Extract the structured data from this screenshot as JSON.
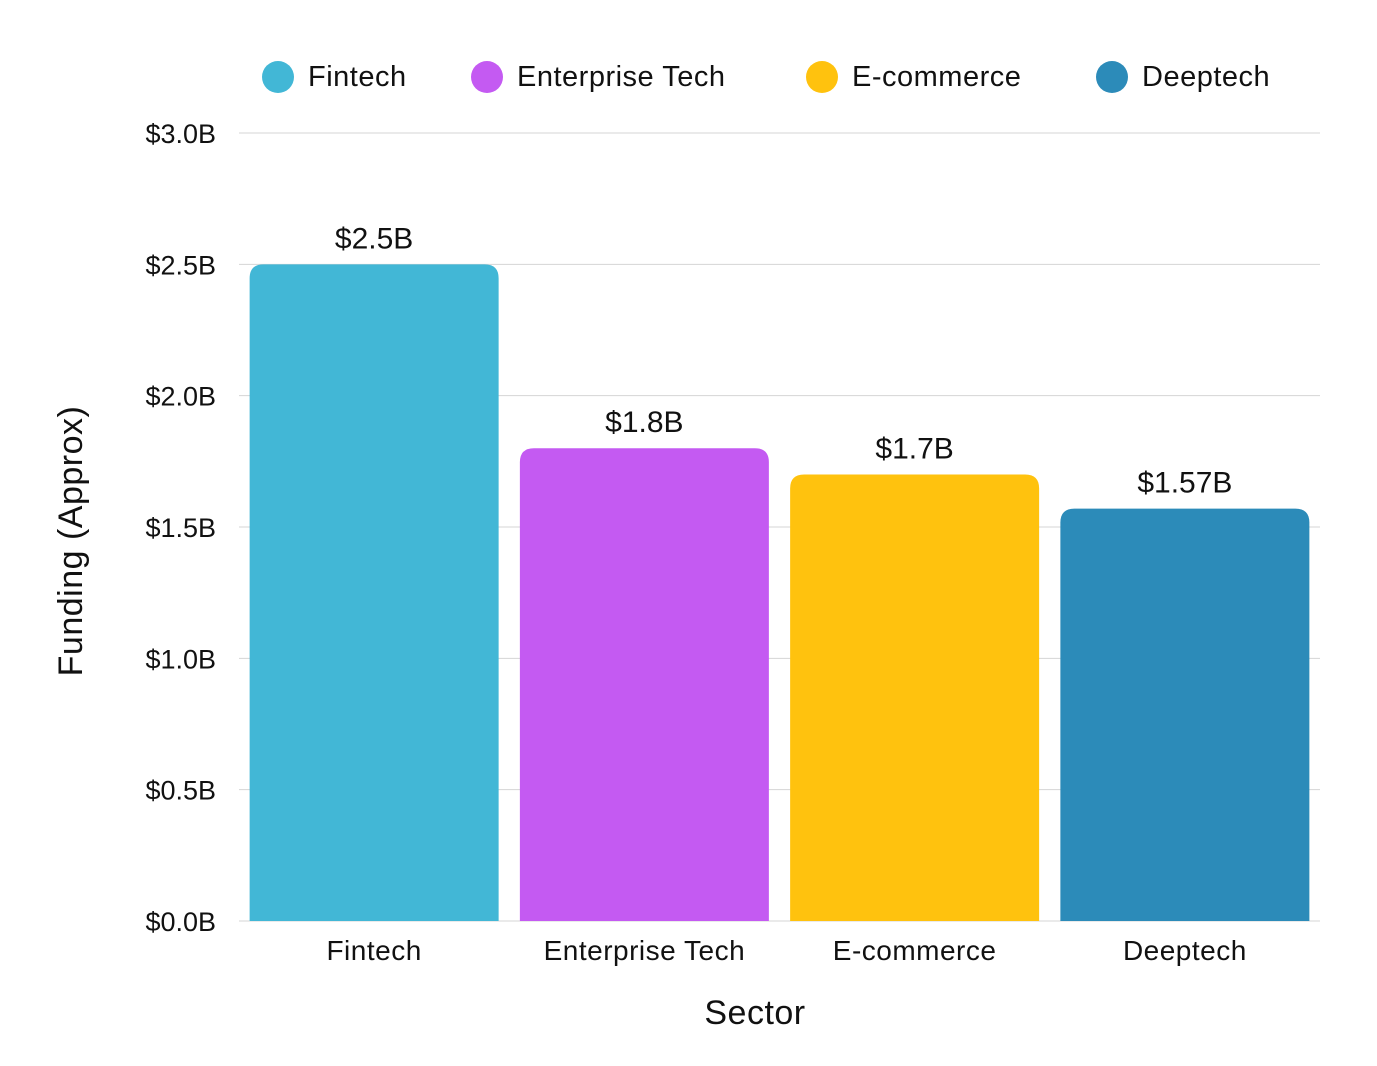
{
  "chart_data": {
    "type": "bar",
    "categories": [
      "Fintech",
      "Enterprise Tech",
      "E-commerce",
      "Deeptech"
    ],
    "values": [
      2.5,
      1.8,
      1.7,
      1.57
    ],
    "data_labels": [
      "$2.5B",
      "$1.8B",
      "$1.7B",
      "$1.57B"
    ],
    "colors": [
      "#42b7d6",
      "#c45af2",
      "#ffc20e",
      "#2c8bb9"
    ],
    "legend": {
      "entries": [
        "Fintech",
        "Enterprise Tech",
        "E-commerce",
        "Deeptech"
      ],
      "placement": "top"
    },
    "title": "",
    "xlabel": "Sector",
    "ylabel": "Funding (Approx)",
    "ylim": [
      0,
      3.0
    ],
    "yticks": [
      0,
      0.5,
      1.0,
      1.5,
      2.0,
      2.5,
      3.0
    ],
    "ytick_labels": [
      "$0.0B",
      "$0.5B",
      "$1.0B",
      "$1.5B",
      "$2.0B",
      "$2.5B",
      "$3.0B"
    ],
    "grid": true
  }
}
